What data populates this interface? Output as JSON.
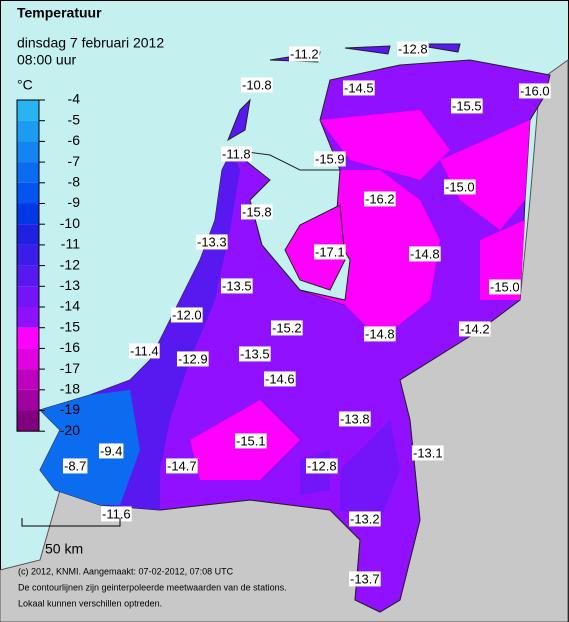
{
  "header": {
    "title": "Temperatuur",
    "date": "dinsdag 7 februari 2012",
    "time": "08:00 uur"
  },
  "legend": {
    "unit": "°C",
    "levels": [
      -4,
      -5,
      -6,
      -7,
      -8,
      -9,
      -10,
      -11,
      -12,
      -13,
      -14,
      -15,
      -16,
      -17,
      -18,
      -19,
      -20
    ],
    "colors": [
      "#28b4f0",
      "#1c9cf0",
      "#1484f0",
      "#0c6cf0",
      "#0454f0",
      "#0038e8",
      "#2020e0",
      "#3c1ce8",
      "#5818f0",
      "#7414f8",
      "#9010ff",
      "#ff00ff",
      "#e000e0",
      "#c000c0",
      "#a000a0",
      "#800080"
    ]
  },
  "stations": [
    "-11.2",
    "-12.8",
    "-10.8",
    "-14.5",
    "-15.5",
    "-16.0",
    "-11.8",
    "-15.9",
    "-16.2",
    "-15.0",
    "-15.8",
    "-13.3",
    "-17.1",
    "-14.8",
    "-15.0",
    "-13.5",
    "-12.0",
    "-15.2",
    "-14.8",
    "-14.2",
    "-11.4",
    "-12.9",
    "-13.5",
    "-14.6",
    "-13.8",
    "-9.4",
    "-15.1",
    "-13.1",
    "-8.7",
    "-14.7",
    "-12.8",
    "-11.6",
    "-13.2",
    "-13.7"
  ],
  "scale": "50 km",
  "footer": [
    "(c) 2012, KNMI. Aangemaakt: 07-02-2012, 07:08 UTC",
    "De contourlijnen zijn geinterpoleerde meetwaarden van de stations.",
    "Lokaal kunnen verschillen optreden."
  ]
}
